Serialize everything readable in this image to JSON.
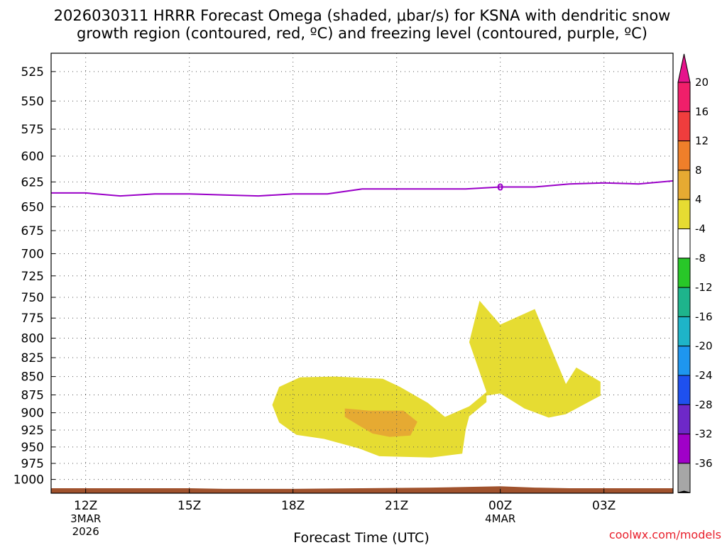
{
  "title": {
    "line1": "2026030311 HRRR Forecast Omega (shaded, μbar/s) for KSNA with dendritic snow",
    "line2": "growth region (contoured, red, ºC) and freezing level (contoured, purple, ºC)"
  },
  "xlabel": "Forecast Time (UTC)",
  "credit": "coolwx.com/models",
  "colors": {
    "freezing_level": "#9a00c8",
    "omega_4_8": "#e6dc32",
    "omega_8_12": "#e6aa32",
    "terrain": "#a0522d",
    "grid": "#555555"
  },
  "chart_data": {
    "type": "contour",
    "x_unit": "forecast hour offset from 2026-03-03 12Z",
    "x_ticks": [
      {
        "hour": 0,
        "label": "12Z",
        "date1": "3MAR",
        "date2": "2026"
      },
      {
        "hour": 3,
        "label": "15Z",
        "date1": "",
        "date2": ""
      },
      {
        "hour": 6,
        "label": "18Z",
        "date1": "",
        "date2": ""
      },
      {
        "hour": 9,
        "label": "21Z",
        "date1": "",
        "date2": ""
      },
      {
        "hour": 12,
        "label": "00Z",
        "date1": "4MAR",
        "date2": ""
      },
      {
        "hour": 15,
        "label": "03Z",
        "date1": "",
        "date2": ""
      }
    ],
    "xlim": [
      -1,
      17
    ],
    "y_scale": "log",
    "y_reversed": true,
    "ylim": [
      1022,
      510
    ],
    "y_ticks": [
      525,
      550,
      575,
      600,
      625,
      650,
      675,
      700,
      725,
      750,
      775,
      800,
      825,
      850,
      875,
      900,
      925,
      950,
      975,
      1000
    ],
    "freezing_level": {
      "label": "0",
      "label_at": [
        12,
        630
      ],
      "points": [
        [
          -1,
          636
        ],
        [
          0,
          636
        ],
        [
          1,
          639
        ],
        [
          2,
          637
        ],
        [
          3,
          637
        ],
        [
          4,
          638
        ],
        [
          5,
          639
        ],
        [
          5.5,
          638
        ],
        [
          6,
          637
        ],
        [
          7,
          637
        ],
        [
          8,
          632
        ],
        [
          9,
          632
        ],
        [
          10,
          632
        ],
        [
          11,
          632
        ],
        [
          12,
          630
        ],
        [
          13,
          630
        ],
        [
          14,
          627
        ],
        [
          15,
          626
        ],
        [
          16,
          627
        ],
        [
          17,
          624
        ]
      ]
    },
    "omega_regions": [
      {
        "range": "4 to 8",
        "points": [
          [
            5.4,
            889
          ],
          [
            5.6,
            864
          ],
          [
            6.2,
            851
          ],
          [
            7.2,
            850
          ],
          [
            8.6,
            853
          ],
          [
            9.1,
            864
          ],
          [
            9.9,
            886
          ],
          [
            10.4,
            906
          ],
          [
            11.1,
            891
          ],
          [
            11.6,
            871
          ],
          [
            11.1,
            805
          ],
          [
            11.4,
            754
          ],
          [
            12.0,
            783
          ],
          [
            13.0,
            764
          ],
          [
            13.9,
            860
          ],
          [
            14.2,
            838
          ],
          [
            14.9,
            857
          ],
          [
            14.9,
            876
          ],
          [
            13.9,
            902
          ],
          [
            13.4,
            907
          ],
          [
            12.7,
            894
          ],
          [
            12.0,
            873
          ],
          [
            11.6,
            876
          ],
          [
            11.6,
            885
          ],
          [
            11.1,
            905
          ],
          [
            11.0,
            924
          ],
          [
            10.9,
            960
          ],
          [
            10.0,
            966
          ],
          [
            8.5,
            964
          ],
          [
            7.9,
            952
          ],
          [
            6.9,
            938
          ],
          [
            6.1,
            932
          ],
          [
            5.6,
            914
          ]
        ]
      },
      {
        "range": "8 to 12",
        "points": [
          [
            7.5,
            894
          ],
          [
            8.2,
            897
          ],
          [
            9.2,
            897
          ],
          [
            9.6,
            913
          ],
          [
            9.4,
            933
          ],
          [
            8.8,
            935
          ],
          [
            8.3,
            930
          ],
          [
            7.9,
            918
          ],
          [
            7.5,
            906
          ]
        ]
      }
    ],
    "terrain": {
      "top_hpa": [
        [
          -1,
          1014
        ],
        [
          0,
          1014
        ],
        [
          3,
          1014
        ],
        [
          4,
          1015
        ],
        [
          6,
          1015
        ],
        [
          8,
          1014
        ],
        [
          10,
          1013
        ],
        [
          12,
          1011
        ],
        [
          13,
          1013
        ],
        [
          14,
          1014
        ],
        [
          17,
          1014
        ]
      ]
    },
    "colorbar": {
      "labels": [
        "20",
        "16",
        "12",
        "8",
        "4",
        "-4",
        "-8",
        "-12",
        "-16",
        "-20",
        "-24",
        "-28",
        "-32",
        "-36"
      ],
      "colors": [
        "#f01f6a",
        "#ef3d3d",
        "#ef7f2a",
        "#e6aa32",
        "#e6dc32",
        "#ffffff",
        "#28c728",
        "#1eb48c",
        "#1eb4c8",
        "#1e96ef",
        "#1e50ef",
        "#6e28c8",
        "#a000c8",
        "#a6a6a6"
      ],
      "top_arrow_color": "#e6148c",
      "bottom_arrow_color": "#000000"
    }
  }
}
